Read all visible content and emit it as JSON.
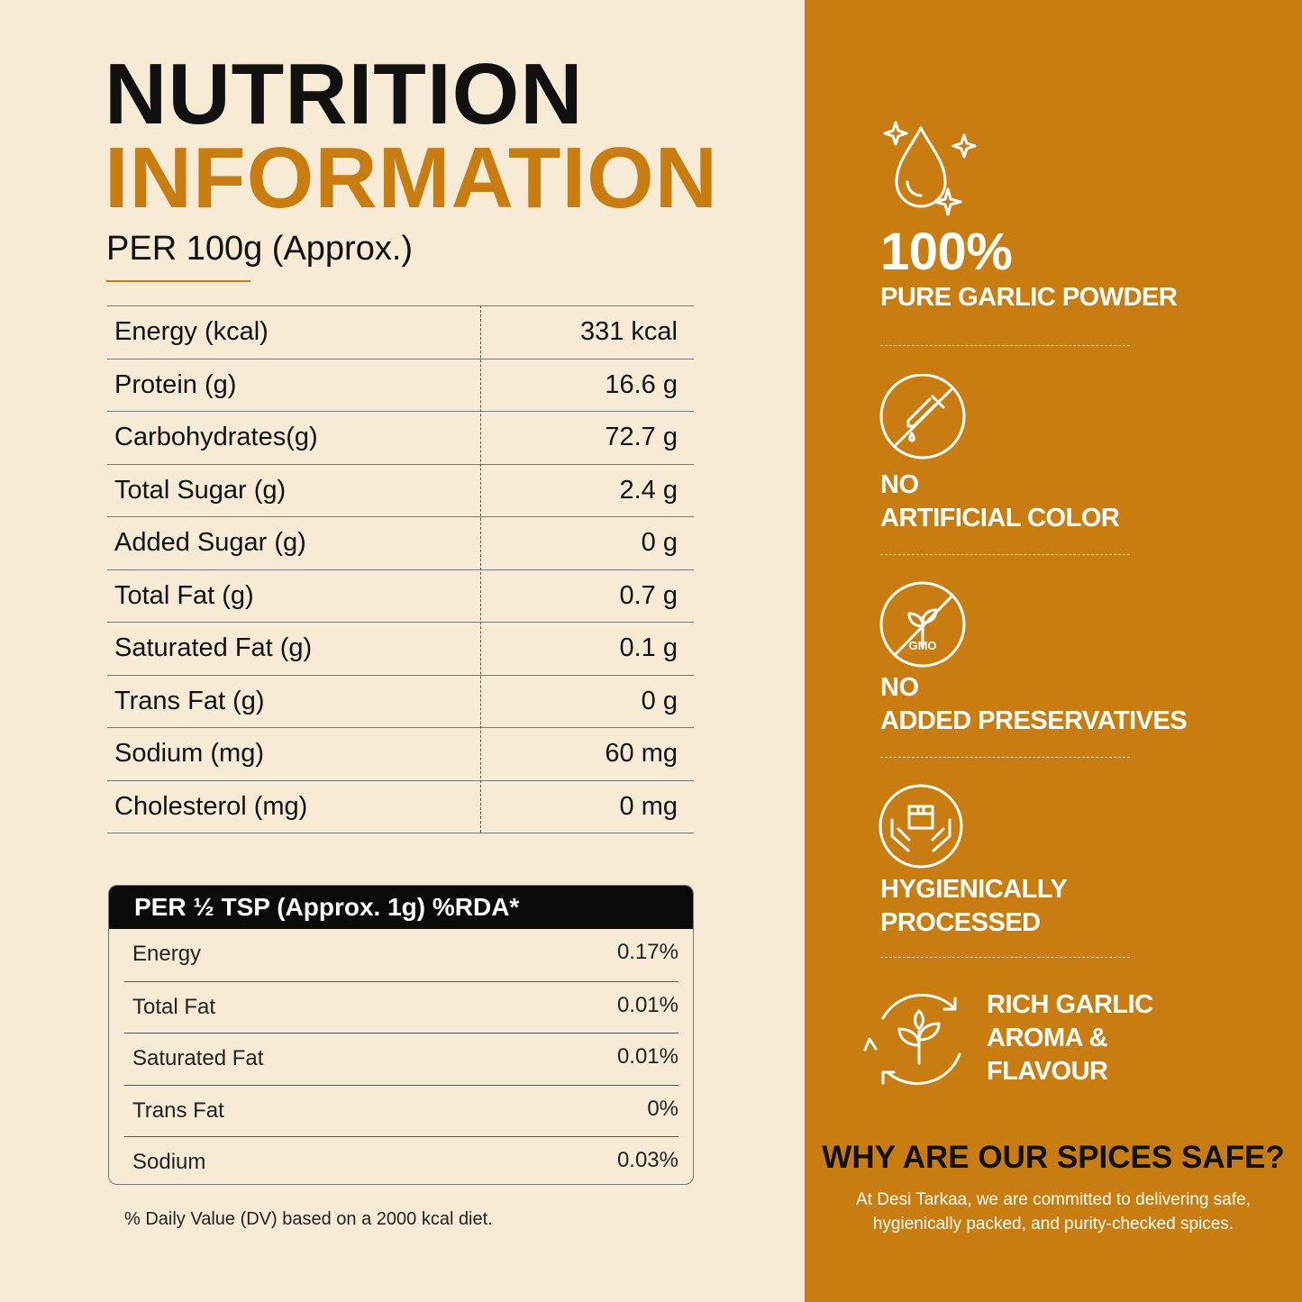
{
  "header": {
    "title_line1": "NUTRITION",
    "title_line2": "INFORMATION",
    "subtitle": "PER 100g (Approx.)"
  },
  "table": {
    "rows": [
      [
        "Energy (kcal)",
        "331 kcal"
      ],
      [
        "Protein (g)",
        "16.6 g"
      ],
      [
        "Carbohydrates(g)",
        "72.7 g"
      ],
      [
        "Total Sugar (g)",
        "2.4 g"
      ],
      [
        "Added Sugar (g)",
        "0 g"
      ],
      [
        "Total Fat (g)",
        "0.7 g"
      ],
      [
        "Saturated Fat (g)",
        "0.1 g"
      ],
      [
        "Trans Fat (g)",
        "0 g"
      ],
      [
        "Sodium (mg)",
        "60 mg"
      ],
      [
        "Cholesterol (mg)",
        "0 mg"
      ]
    ]
  },
  "rda": {
    "header": "PER ½ TSP (Approx. 1g) %RDA*",
    "rows": [
      [
        "Energy",
        "0.17%"
      ],
      [
        "Total Fat",
        "0.01%"
      ],
      [
        "Saturated Fat",
        "0.01%"
      ],
      [
        "Trans Fat",
        "0%"
      ],
      [
        "Sodium",
        "0.03%"
      ]
    ]
  },
  "footnote": "% Daily Value (DV) based on a 2000 kcal diet.",
  "features": [
    {
      "lines": [
        "100%",
        "PURE GARLIC POWDER"
      ]
    },
    {
      "lines": [
        "NO",
        "ARTIFICIAL COLOR"
      ]
    },
    {
      "lines": [
        "NO",
        "ADDED PRESERVATIVES"
      ]
    },
    {
      "lines": [
        "HYGIENICALLY",
        "PROCESSED"
      ]
    },
    {
      "lines": [
        "RICH GARLIC",
        "AROMA &",
        "FLAVOUR"
      ]
    }
  ],
  "safety": {
    "title": "WHY ARE OUR SPICES SAFE?",
    "text_lines": [
      "At Desi Tarkaa, we are committed to delivering safe,",
      "hygienically packed, and purity-checked spices."
    ]
  }
}
